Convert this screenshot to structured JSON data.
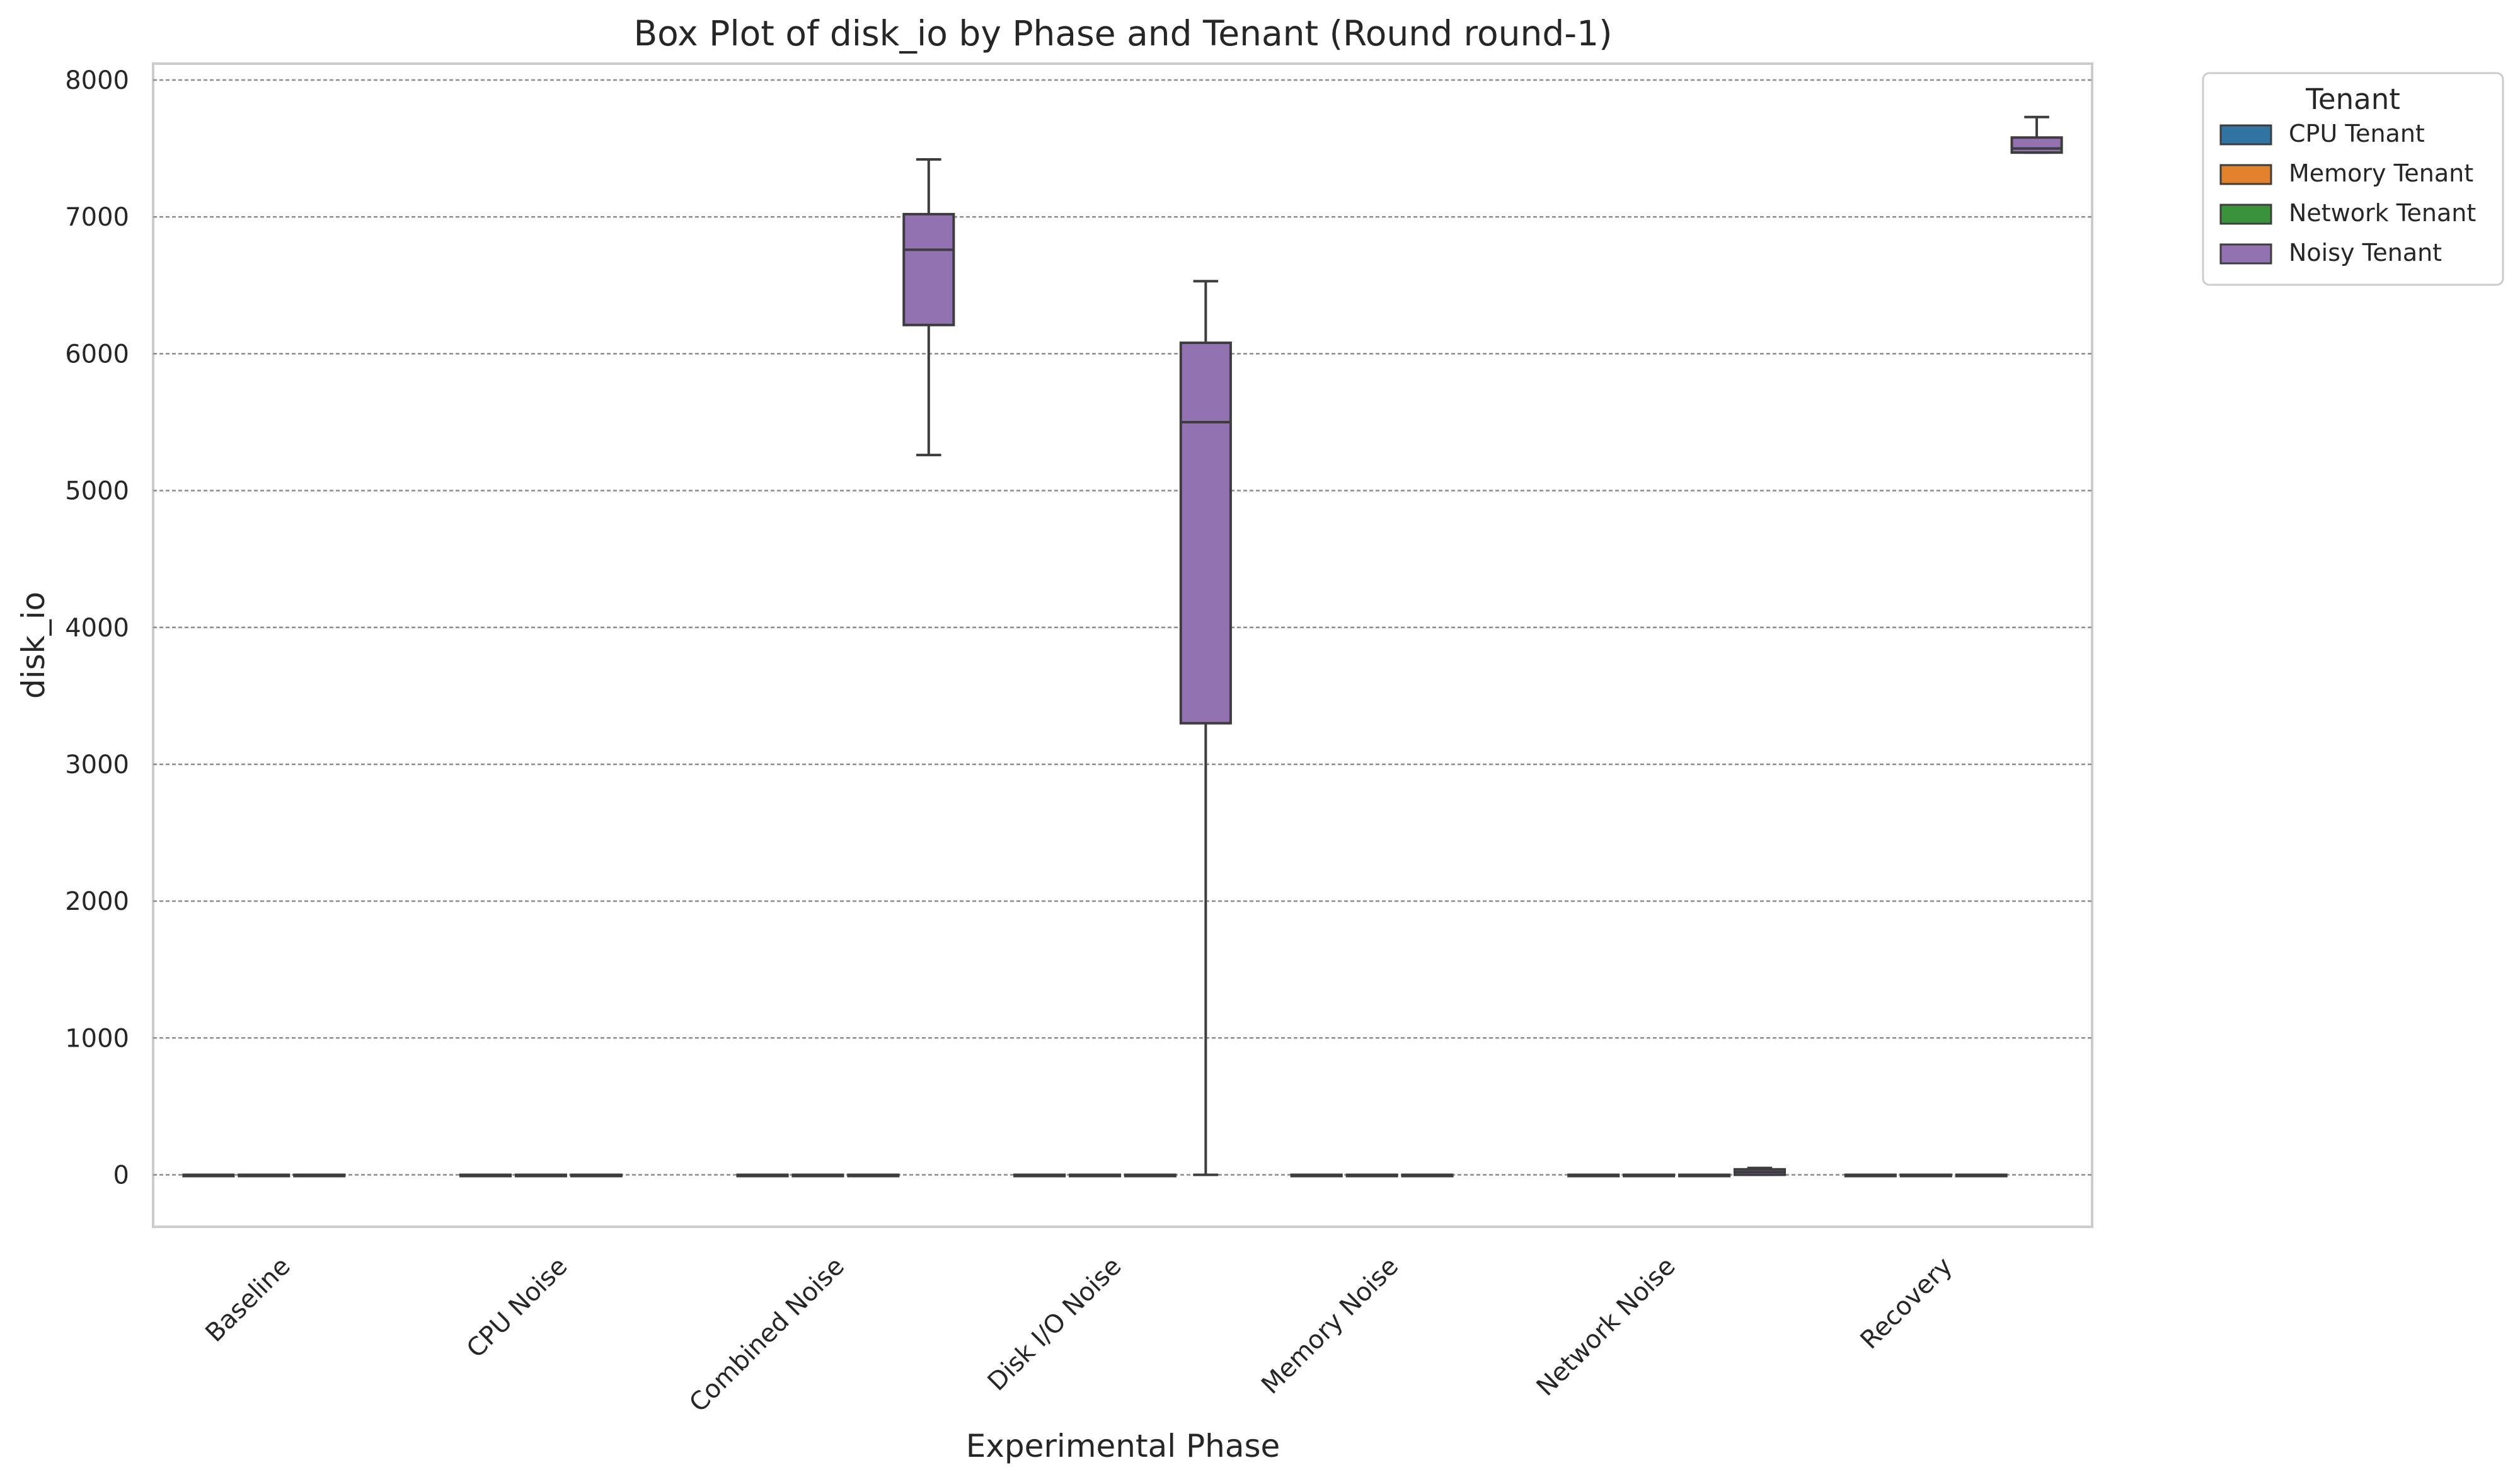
{
  "chart_data": {
    "type": "box",
    "title": "Box Plot of disk_io by Phase and Tenant (Round round-1)",
    "xlabel": "Experimental Phase",
    "ylabel": "disk_io",
    "ylim": [
      -380,
      8120
    ],
    "yticks": [
      0,
      1000,
      2000,
      3000,
      4000,
      5000,
      6000,
      7000,
      8000
    ],
    "grid": true,
    "legend": {
      "title": "Tenant",
      "placement": "outside-top-right",
      "entries": [
        "CPU Tenant",
        "Memory Tenant",
        "Network Tenant",
        "Noisy Tenant"
      ]
    },
    "categories": [
      "Baseline",
      "CPU Noise",
      "Combined Noise",
      "Disk I/O Noise",
      "Memory Noise",
      "Network Noise",
      "Recovery"
    ],
    "series": [
      {
        "name": "CPU Tenant",
        "color": "#3274a1",
        "boxes": [
          {
            "category": "Baseline",
            "whisker_low": 0,
            "q1": 0,
            "median": 0,
            "q3": 0,
            "whisker_high": 0
          },
          {
            "category": "CPU Noise",
            "whisker_low": 0,
            "q1": 0,
            "median": 0,
            "q3": 0,
            "whisker_high": 0
          },
          {
            "category": "Combined Noise",
            "whisker_low": 0,
            "q1": 0,
            "median": 0,
            "q3": 0,
            "whisker_high": 0
          },
          {
            "category": "Disk I/O Noise",
            "whisker_low": 0,
            "q1": 0,
            "median": 0,
            "q3": 0,
            "whisker_high": 0
          },
          {
            "category": "Memory Noise",
            "whisker_low": 0,
            "q1": 0,
            "median": 0,
            "q3": 0,
            "whisker_high": 0
          },
          {
            "category": "Network Noise",
            "whisker_low": 0,
            "q1": 0,
            "median": 0,
            "q3": 0,
            "whisker_high": 0
          },
          {
            "category": "Recovery",
            "whisker_low": 0,
            "q1": 0,
            "median": 0,
            "q3": 0,
            "whisker_high": 0
          }
        ]
      },
      {
        "name": "Memory Tenant",
        "color": "#e1812c",
        "boxes": [
          {
            "category": "Baseline",
            "whisker_low": 0,
            "q1": 0,
            "median": 0,
            "q3": 0,
            "whisker_high": 0
          },
          {
            "category": "CPU Noise",
            "whisker_low": 0,
            "q1": 0,
            "median": 0,
            "q3": 0,
            "whisker_high": 0
          },
          {
            "category": "Combined Noise",
            "whisker_low": 0,
            "q1": 0,
            "median": 0,
            "q3": 0,
            "whisker_high": 0
          },
          {
            "category": "Disk I/O Noise",
            "whisker_low": 0,
            "q1": 0,
            "median": 0,
            "q3": 0,
            "whisker_high": 0
          },
          {
            "category": "Memory Noise",
            "whisker_low": 0,
            "q1": 0,
            "median": 0,
            "q3": 0,
            "whisker_high": 0
          },
          {
            "category": "Network Noise",
            "whisker_low": 0,
            "q1": 0,
            "median": 0,
            "q3": 0,
            "whisker_high": 0
          },
          {
            "category": "Recovery",
            "whisker_low": 0,
            "q1": 0,
            "median": 0,
            "q3": 0,
            "whisker_high": 0
          }
        ]
      },
      {
        "name": "Network Tenant",
        "color": "#3a923a",
        "boxes": [
          {
            "category": "Baseline",
            "whisker_low": 0,
            "q1": 0,
            "median": 0,
            "q3": 0,
            "whisker_high": 0
          },
          {
            "category": "CPU Noise",
            "whisker_low": 0,
            "q1": 0,
            "median": 0,
            "q3": 0,
            "whisker_high": 0
          },
          {
            "category": "Combined Noise",
            "whisker_low": 0,
            "q1": 0,
            "median": 0,
            "q3": 0,
            "whisker_high": 0
          },
          {
            "category": "Disk I/O Noise",
            "whisker_low": 0,
            "q1": 0,
            "median": 0,
            "q3": 0,
            "whisker_high": 0
          },
          {
            "category": "Memory Noise",
            "whisker_low": 0,
            "q1": 0,
            "median": 0,
            "q3": 0,
            "whisker_high": 0
          },
          {
            "category": "Network Noise",
            "whisker_low": 0,
            "q1": 0,
            "median": 0,
            "q3": 0,
            "whisker_high": 0
          },
          {
            "category": "Recovery",
            "whisker_low": 0,
            "q1": 0,
            "median": 0,
            "q3": 0,
            "whisker_high": 0
          }
        ]
      },
      {
        "name": "Noisy Tenant",
        "color": "#9372b2",
        "boxes": [
          {
            "category": "Combined Noise",
            "whisker_low": 5260,
            "q1": 6210,
            "median": 6760,
            "q3": 7020,
            "whisker_high": 7420
          },
          {
            "category": "Disk I/O Noise",
            "whisker_low": 0,
            "q1": 3300,
            "median": 5500,
            "q3": 6080,
            "whisker_high": 6530
          },
          {
            "category": "Network Noise",
            "whisker_low": 0,
            "q1": 0,
            "median": 20,
            "q3": 40,
            "whisker_high": 50
          },
          {
            "category": "Recovery",
            "whisker_low": 7470,
            "q1": 7470,
            "median": 7500,
            "q3": 7580,
            "whisker_high": 7730
          }
        ]
      }
    ]
  }
}
